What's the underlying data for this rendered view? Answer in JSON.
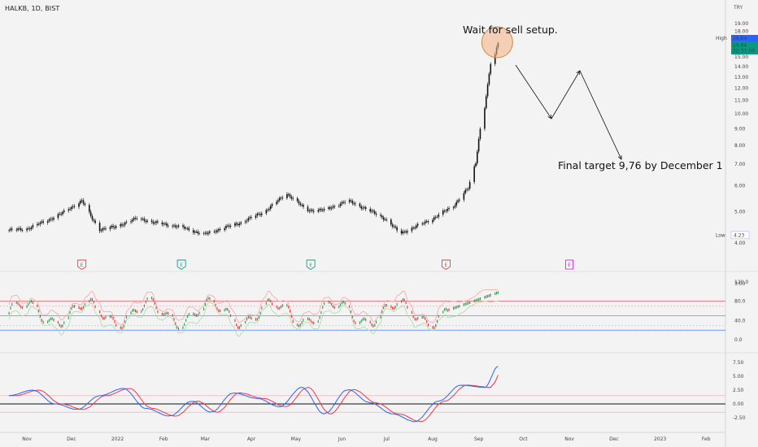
{
  "header": {
    "symbol": "HALKB, 1D, BIST",
    "currency": "TRY"
  },
  "annotations": {
    "wait_text": "Wait for sell setup.",
    "target_text": "Final target 9,76 by December 1"
  },
  "price_markers": {
    "high_label": "High",
    "high_value": "16.64",
    "last_value": "16.64",
    "countdown": "02:37:09",
    "low_label": "Low",
    "low_value": "4.23"
  },
  "events": [
    {
      "label": "E",
      "month": "Dec",
      "type": "red"
    },
    {
      "label": "E",
      "month": "Feb",
      "type": "green"
    },
    {
      "label": "E",
      "month": "May",
      "type": "green"
    },
    {
      "label": "E",
      "month": "Aug",
      "type": "red"
    },
    {
      "label": "E",
      "month": "Nov",
      "type": "magenta"
    }
  ],
  "colors": {
    "background": "#f3f3f3",
    "candle": "#111111",
    "up_bar": "#2e9a4c",
    "down_bar": "#e53935",
    "upper_band": "#f4a3a8",
    "lower_band": "#a8dba8",
    "osc_fast": "#2962ff",
    "osc_slow": "#f23645",
    "highlight_fill": "#f4b183",
    "highlight_stroke": "#d08a3c",
    "event_red": "#e53935",
    "event_green": "#089981",
    "event_magenta": "#d500f9",
    "price_badge": "#089981",
    "high_badge": "#2962ff"
  },
  "chart_data": [
    {
      "type": "candlestick",
      "title": "HALKB, 1D, BIST",
      "ylabel": "TRY",
      "x_tick_labels": [
        "Nov",
        "Dec",
        "2022",
        "Feb",
        "Mar",
        "Apr",
        "May",
        "Jun",
        "Jul",
        "Aug",
        "Sep",
        "Oct",
        "Nov",
        "Dec",
        "2023",
        "Feb"
      ],
      "y_tick_labels": [
        "19.00",
        "18.00",
        "17.00",
        "16.00",
        "15.00",
        "14.00",
        "13.00",
        "12.00",
        "11.00",
        "10.00",
        "9.00",
        "8.00",
        "7.00",
        "6.00",
        "5.00",
        "4.00",
        "3.00"
      ],
      "ylim": [
        3,
        19
      ],
      "log_scale": true,
      "close_series": {
        "x": [
          "2021-10-20",
          "2021-11-01",
          "2021-11-15",
          "2021-11-25",
          "2021-12-08",
          "2021-12-15",
          "2021-12-20",
          "2021-12-30",
          "2022-01-15",
          "2022-01-25",
          "2022-02-01",
          "2022-02-15",
          "2022-02-28",
          "2022-03-10",
          "2022-03-25",
          "2022-04-10",
          "2022-04-25",
          "2022-05-08",
          "2022-05-20",
          "2022-06-05",
          "2022-06-15",
          "2022-06-30",
          "2022-07-10",
          "2022-07-20",
          "2022-08-01",
          "2022-08-15",
          "2022-08-25",
          "2022-08-30",
          "2022-09-02",
          "2022-09-05",
          "2022-09-07",
          "2022-09-09",
          "2022-09-12",
          "2022-09-14"
        ],
        "y": [
          4.38,
          4.42,
          4.7,
          4.95,
          5.4,
          4.75,
          4.4,
          4.48,
          4.78,
          4.62,
          4.58,
          4.45,
          4.25,
          4.4,
          4.62,
          5.0,
          5.68,
          5.05,
          5.05,
          5.4,
          5.15,
          4.75,
          4.28,
          4.48,
          4.75,
          5.2,
          5.9,
          7.1,
          9.0,
          10.5,
          12.2,
          14.3,
          15.2,
          16.64
        ]
      }
    },
    {
      "type": "line",
      "name": "oscillator",
      "y_tick_labels": [
        "120.0",
        "80.0",
        "40.0",
        "0.0"
      ],
      "ylim": [
        0,
        120
      ],
      "levels": [
        80,
        70,
        50,
        30,
        20
      ],
      "bands_shown": true
    },
    {
      "type": "line",
      "name": "momentum",
      "y_tick_labels": [
        "7.50",
        "5.00",
        "2.50",
        "0.00",
        "-2.50"
      ],
      "ylim": [
        -3.5,
        8
      ],
      "levels": [
        1.5,
        0,
        -1.5
      ],
      "series": [
        {
          "x": [
            "2021-10-20",
            "2021-11-05",
            "2021-11-20",
            "2021-12-05",
            "2021-12-20",
            "2022-01-05",
            "2022-01-20",
            "2022-02-05",
            "2022-02-20",
            "2022-03-05",
            "2022-03-20",
            "2022-04-05",
            "2022-04-20",
            "2022-05-05",
            "2022-05-20",
            "2022-06-05",
            "2022-06-20",
            "2022-07-05",
            "2022-07-20",
            "2022-08-05",
            "2022-08-20",
            "2022-09-05",
            "2022-09-14"
          ],
          "y": [
            1.5,
            2.5,
            0.0,
            -1.0,
            1.5,
            2.8,
            -0.8,
            -2.2,
            0.5,
            -1.5,
            2.0,
            1.0,
            -0.5,
            3.0,
            -1.8,
            2.6,
            0.2,
            -1.8,
            -3.2,
            0.5,
            3.4,
            3.0,
            6.8
          ]
        }
      ]
    }
  ]
}
